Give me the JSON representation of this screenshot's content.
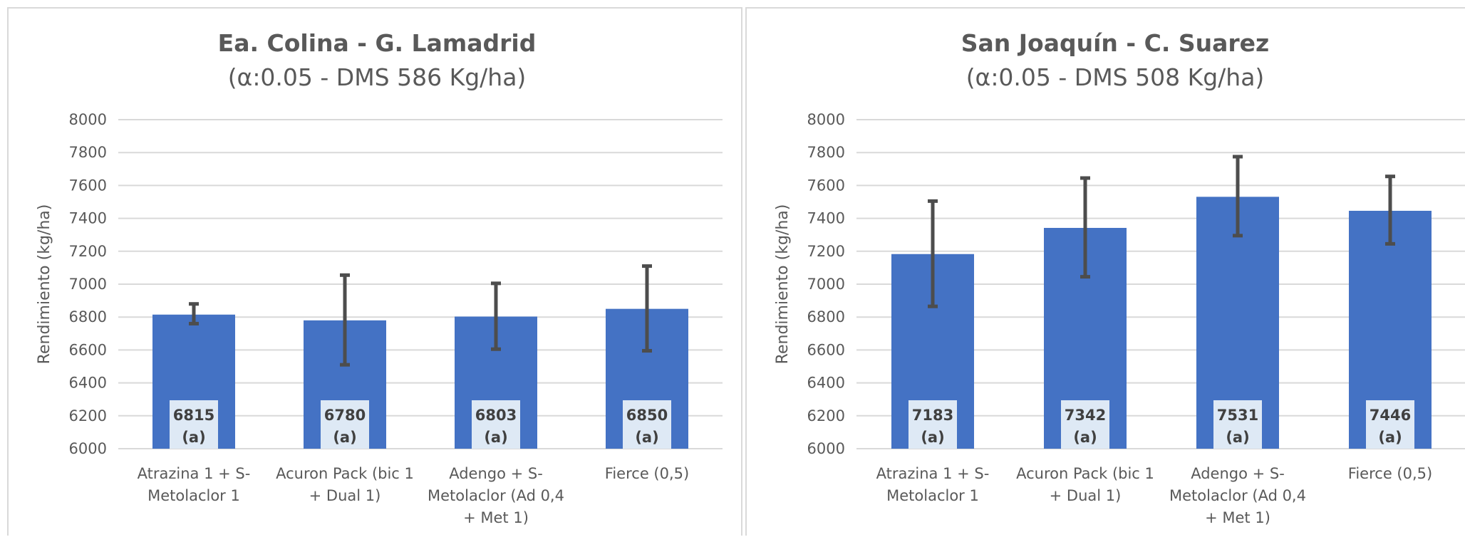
{
  "colors": {
    "bar": "#4472c4",
    "error_bar": "#4d4d4d",
    "grid": "#d9d9d9",
    "label_box": "#dee9f5",
    "text": "#595959"
  },
  "chart_data": [
    {
      "type": "bar",
      "title": "Ea. Colina - G. Lamadrid",
      "subtitle": "(α:0.05 - DMS 586 Kg/ha)",
      "xlabel": "",
      "ylabel": "Rendimiento (kg/ha)",
      "ylim": [
        6000,
        8000
      ],
      "yticks": [
        "8000",
        "7800",
        "7600",
        "7400",
        "7200",
        "7000",
        "6800",
        "6600",
        "6400",
        "6200",
        "6000"
      ],
      "grid": true,
      "categories": [
        [
          "Atrazina 1 + S-",
          "Metolaclor 1"
        ],
        [
          "Acuron Pack (bic 1",
          "+ Dual 1)"
        ],
        [
          "Adengo + S-",
          "Metolaclor (Ad 0,4",
          "+ Met 1)"
        ],
        [
          "Fierce (0,5)"
        ]
      ],
      "values": [
        6815,
        6780,
        6803,
        6850
      ],
      "labels": [
        "6815",
        "6780",
        "6803",
        "6850"
      ],
      "groups": [
        "(a)",
        "(a)",
        "(a)",
        "(a)"
      ],
      "error_low": [
        6760,
        6510,
        6605,
        6595
      ],
      "error_high": [
        6880,
        7055,
        7005,
        7110
      ]
    },
    {
      "type": "bar",
      "title": "San Joaquín - C. Suarez",
      "subtitle": "(α:0.05 - DMS 508 Kg/ha)",
      "xlabel": "",
      "ylabel": "Rendimiento (kg/ha)",
      "ylim": [
        6000,
        8000
      ],
      "yticks": [
        "8000",
        "7800",
        "7600",
        "7400",
        "7200",
        "7000",
        "6800",
        "6600",
        "6400",
        "6200",
        "6000"
      ],
      "grid": true,
      "categories": [
        [
          "Atrazina 1 + S-",
          "Metolaclor 1"
        ],
        [
          "Acuron Pack (bic 1",
          "+ Dual 1)"
        ],
        [
          "Adengo + S-",
          "Metolaclor (Ad 0,4",
          "+ Met 1)"
        ],
        [
          "Fierce (0,5)"
        ]
      ],
      "values": [
        7183,
        7342,
        7531,
        7446
      ],
      "labels": [
        "7183",
        "7342",
        "7531",
        "7446"
      ],
      "groups": [
        "(a)",
        "(a)",
        "(a)",
        "(a)"
      ],
      "error_low": [
        6865,
        7045,
        7295,
        7245
      ],
      "error_high": [
        7505,
        7645,
        7775,
        7655
      ]
    }
  ]
}
